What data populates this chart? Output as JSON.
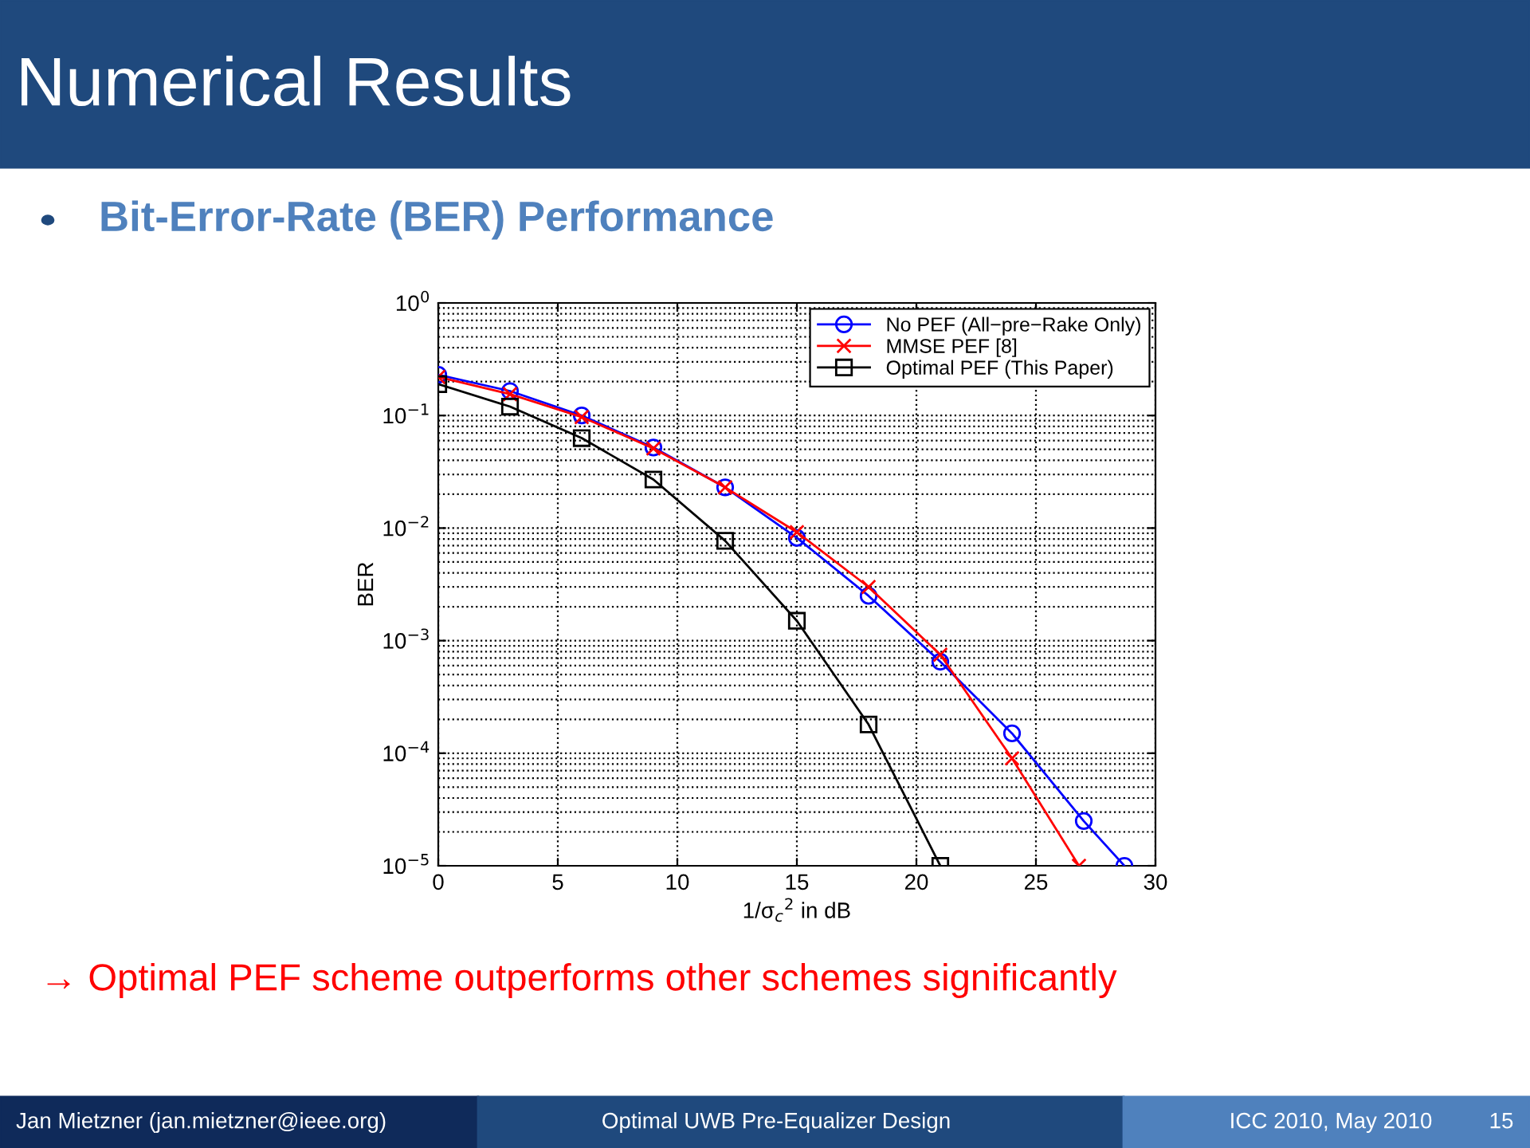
{
  "chart_data": {
    "type": "line",
    "title": "Numerical Results",
    "subtitle": "Bit-Error-Rate (BER) Performance",
    "xlabel": "1/σ$_{c}$$^{2}$ in dB",
    "ylabel": "BER",
    "series": [
      {
        "name": "No PEF (All−pre−Rake Only)",
        "color": "#0000ff",
        "marker": "circle",
        "x": [
          0,
          3,
          6,
          9,
          12,
          15,
          18,
          21,
          24,
          27,
          28.7
        ],
        "values": [
          0.23,
          0.165,
          0.1,
          0.052,
          0.023,
          0.0082,
          0.0025,
          0.00065,
          0.00015,
          2.5e-05,
          1e-05
        ]
      },
      {
        "name": "MMSE PEF [8]",
        "color": "#ff0000",
        "marker": "cross",
        "x": [
          0,
          3,
          6,
          9,
          12,
          15,
          18,
          21,
          24,
          26.8
        ],
        "values": [
          0.22,
          0.155,
          0.097,
          0.051,
          0.023,
          0.0092,
          0.003,
          0.00075,
          9e-05,
          1e-05
        ]
      },
      {
        "name": "Optimal PEF (This Paper)",
        "color": "#000000",
        "marker": "square",
        "x": [
          0,
          3,
          6,
          9,
          12,
          15,
          18,
          21
        ],
        "values": [
          0.19,
          0.12,
          0.063,
          0.027,
          0.0077,
          0.0015,
          0.00018,
          1e-05
        ]
      }
    ],
    "log": "y",
    "xlim": [
      0,
      30
    ],
    "xticks": [
      0,
      5,
      10,
      15,
      20,
      25,
      30
    ],
    "ylim": [
      1e-05,
      1
    ],
    "yticks": [
      {
        "value": 1e-05,
        "label": "10$^{−5}$"
      },
      {
        "value": 0.0001,
        "label": "10$^{−4}$"
      },
      {
        "value": 0.001,
        "label": "10$^{−3}$"
      },
      {
        "value": 0.01,
        "label": "10$^{−2}$"
      },
      {
        "value": 0.1,
        "label": "10$^{−1}$"
      },
      {
        "value": 1,
        "label": "10$^{0}$"
      }
    ],
    "grid": true,
    "legend": "top right",
    "annotations": [
      "→ Optimal PEF scheme outperforms other schemes significantly",
      "Jan Mietzner (jan.mietzner@ieee.org)",
      "Optimal UWB Pre-Equalizer Design",
      "ICC 2010, May 2010",
      "15"
    ]
  }
}
